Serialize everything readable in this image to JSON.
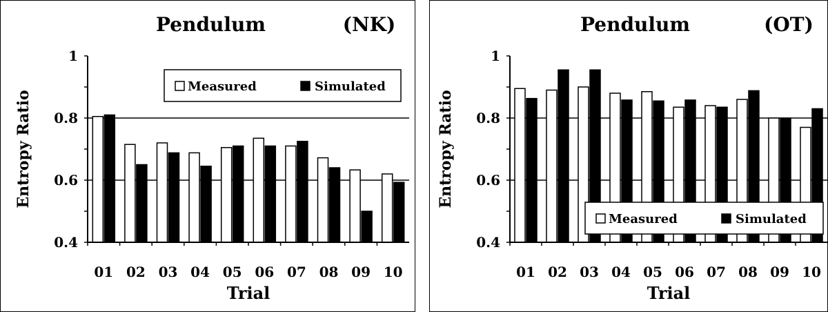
{
  "chart_data": [
    {
      "type": "bar",
      "title": "Pendulum",
      "tag": "(NK)",
      "xlabel": "Trial",
      "ylabel": "Entropy Ratio",
      "categories": [
        "01",
        "02",
        "03",
        "04",
        "05",
        "06",
        "07",
        "08",
        "09",
        "10"
      ],
      "ylim": [
        0.4,
        1
      ],
      "y_ticks": [
        "0.4",
        "0.6",
        "0.8",
        "1"
      ],
      "grid": true,
      "legend_position": "top-right",
      "series": [
        {
          "name": "Measured",
          "color": "#ffffff",
          "values": [
            0.805,
            0.715,
            0.72,
            0.688,
            0.705,
            0.735,
            0.71,
            0.672,
            0.633,
            0.62
          ]
        },
        {
          "name": "Simulated",
          "color": "#000000",
          "values": [
            0.81,
            0.65,
            0.688,
            0.645,
            0.71,
            0.71,
            0.725,
            0.64,
            0.5,
            0.593
          ]
        }
      ]
    },
    {
      "type": "bar",
      "title": "Pendulum",
      "tag": "(OT)",
      "xlabel": "Trial",
      "ylabel": "Entropy Ratio",
      "categories": [
        "01",
        "02",
        "03",
        "04",
        "05",
        "06",
        "07",
        "08",
        "09",
        "10"
      ],
      "ylim": [
        0.4,
        1
      ],
      "y_ticks": [
        "0.4",
        "0.6",
        "0.8",
        "1"
      ],
      "grid": true,
      "legend_position": "bottom-right",
      "series": [
        {
          "name": "Measured",
          "color": "#ffffff",
          "values": [
            0.895,
            0.89,
            0.9,
            0.88,
            0.885,
            0.835,
            0.84,
            0.86,
            0.8,
            0.77
          ]
        },
        {
          "name": "Simulated",
          "color": "#000000",
          "values": [
            0.863,
            0.955,
            0.955,
            0.858,
            0.855,
            0.858,
            0.835,
            0.888,
            0.8,
            0.83
          ]
        }
      ]
    }
  ]
}
